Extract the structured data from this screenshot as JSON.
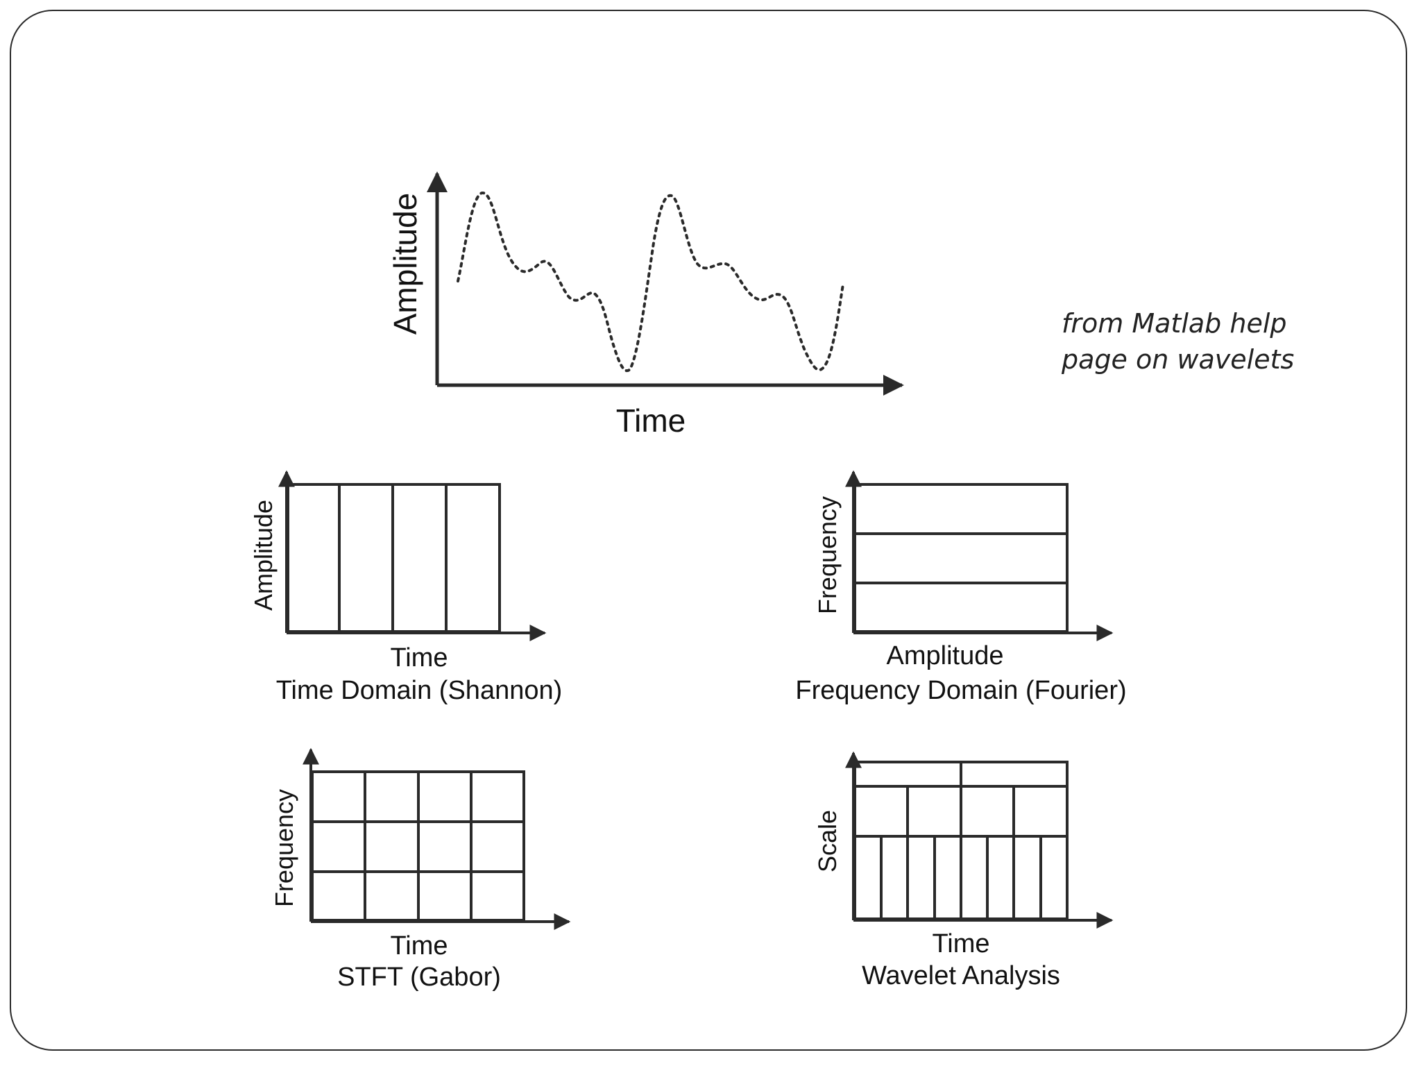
{
  "signal_panel": {
    "ylabel": "Amplitude",
    "xlabel": "Time"
  },
  "note": {
    "line1": "from Matlab help",
    "line2": "page on wavelets"
  },
  "panels": [
    {
      "id": "time-domain",
      "ylabel": "Amplitude",
      "xlabel": "Time",
      "caption": "Time Domain (Shannon)"
    },
    {
      "id": "frequency-domain",
      "ylabel": "Frequency",
      "xlabel": "Amplitude",
      "caption": "Frequency Domain (Fourier)"
    },
    {
      "id": "stft",
      "ylabel": "Frequency",
      "xlabel": "Time",
      "caption": "STFT (Gabor)"
    },
    {
      "id": "wavelet",
      "ylabel": "Scale",
      "xlabel": "Time",
      "caption": "Wavelet Analysis"
    }
  ],
  "colors": {
    "line": "#2a2a2a",
    "text": "#111111"
  }
}
